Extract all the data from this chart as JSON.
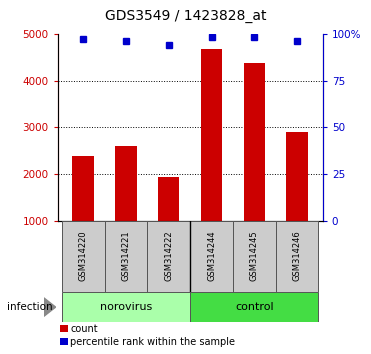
{
  "title": "GDS3549 / 1423828_at",
  "samples": [
    "GSM314220",
    "GSM314221",
    "GSM314222",
    "GSM314244",
    "GSM314245",
    "GSM314246"
  ],
  "counts": [
    2400,
    2600,
    1950,
    4680,
    4380,
    2900
  ],
  "percentile_ranks": [
    97,
    96,
    94,
    98,
    98,
    96
  ],
  "bar_color": "#cc0000",
  "marker_color": "#0000cc",
  "ylim_left": [
    1000,
    5000
  ],
  "ylim_right": [
    0,
    100
  ],
  "yticks_left": [
    1000,
    2000,
    3000,
    4000,
    5000
  ],
  "yticks_right": [
    0,
    25,
    50,
    75,
    100
  ],
  "ytick_labels_right": [
    "0",
    "25",
    "50",
    "75",
    "100%"
  ],
  "groups": [
    {
      "label": "norovirus",
      "indices": [
        0,
        1,
        2
      ],
      "color": "#aaffaa"
    },
    {
      "label": "control",
      "indices": [
        3,
        4,
        5
      ],
      "color": "#44dd44"
    }
  ],
  "group_label_prefix": "infection",
  "legend_items": [
    {
      "label": "count",
      "color": "#cc0000"
    },
    {
      "label": "percentile rank within the sample",
      "color": "#0000cc"
    }
  ],
  "background_color": "#ffffff",
  "plot_bg_color": "#ffffff",
  "bar_width": 0.5,
  "tick_label_color_left": "#cc0000",
  "tick_label_color_right": "#0000cc",
  "sample_box_color": "#cccccc",
  "grid_dotted_color": "#000000"
}
